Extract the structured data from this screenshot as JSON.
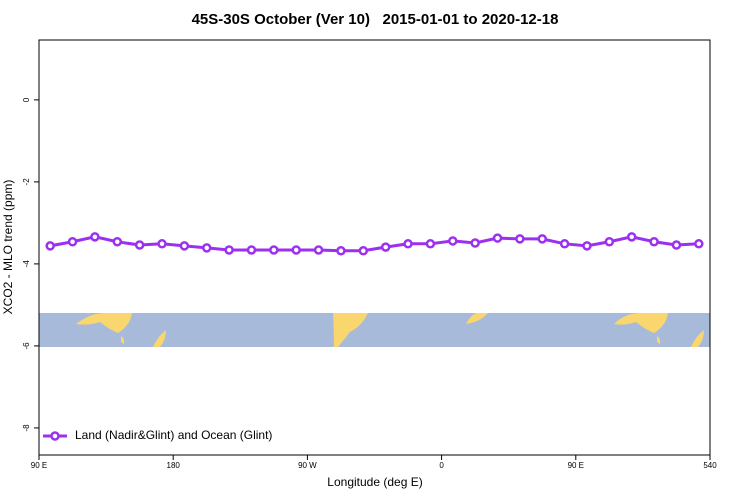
{
  "chart_data": {
    "type": "line",
    "title": "45S-30S October (Ver 10)   2015-01-01 to 2020-12-18",
    "xlabel": "Longitude (deg E)",
    "ylabel": "XCO2 - MLO trend (ppm)",
    "xlim": [
      90,
      540
    ],
    "xticks": [
      {
        "value": 90,
        "label": "90 E"
      },
      180,
      {
        "value": 270,
        "label": "90 W"
      },
      {
        "value": 360,
        "label": "0"
      },
      {
        "value": 450,
        "label": "90 E"
      },
      540
    ],
    "ylim": [
      -8.66,
      1.46
    ],
    "yticks": [
      0,
      -2,
      -4,
      -6,
      -8
    ],
    "legend": "bottomleft",
    "grid": false,
    "series": [
      {
        "name": "Land (Nadir&Glint) and Ocean (Glint)",
        "color": "#9b30f0",
        "x": [
          97.5,
          112.5,
          127.5,
          142.5,
          157.5,
          172.5,
          187.5,
          202.5,
          217.5,
          232.5,
          247.5,
          262.5,
          277.5,
          292.5,
          307.5,
          322.5,
          337.5,
          352.5,
          367.5,
          382.5,
          397.5,
          412.5,
          427.5,
          442.5,
          457.5,
          472.5,
          487.5,
          502.5,
          517.5,
          532.5
        ],
        "values": [
          -3.56,
          -3.46,
          -3.34,
          -3.46,
          -3.54,
          -3.51,
          -3.56,
          -3.61,
          -3.66,
          -3.66,
          -3.66,
          -3.66,
          -3.66,
          -3.68,
          -3.68,
          -3.59,
          -3.51,
          -3.51,
          -3.44,
          -3.49,
          -3.37,
          -3.39,
          -3.39,
          -3.51,
          -3.56,
          -3.46,
          -3.34,
          -3.46,
          -3.54,
          -3.51
        ]
      }
    ]
  }
}
